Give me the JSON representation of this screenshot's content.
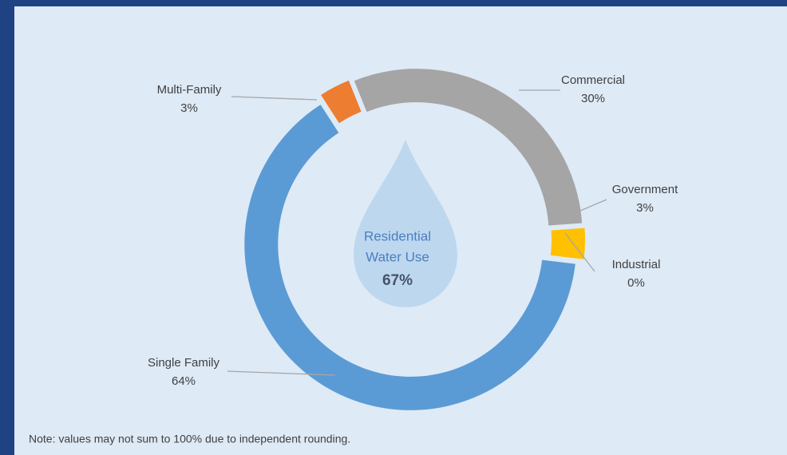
{
  "chart_data": {
    "type": "pie",
    "categories": [
      "Commercial",
      "Government",
      "Industrial",
      "Single Family",
      "Multi-Family"
    ],
    "values": [
      30,
      3,
      0,
      64,
      3
    ],
    "value_labels": [
      "30%",
      "3%",
      "0%",
      "64%",
      "3%"
    ],
    "colors": [
      "#a5a5a5",
      "#ffc000",
      "#4472c4",
      "#5b9bd5",
      "#ed7d31"
    ],
    "center_text": [
      "Residential",
      "Water Use"
    ],
    "center_value": {
      "value": 67,
      "label": "67%"
    },
    "note": "Note: values may not sum to 100% due to independent rounding."
  }
}
